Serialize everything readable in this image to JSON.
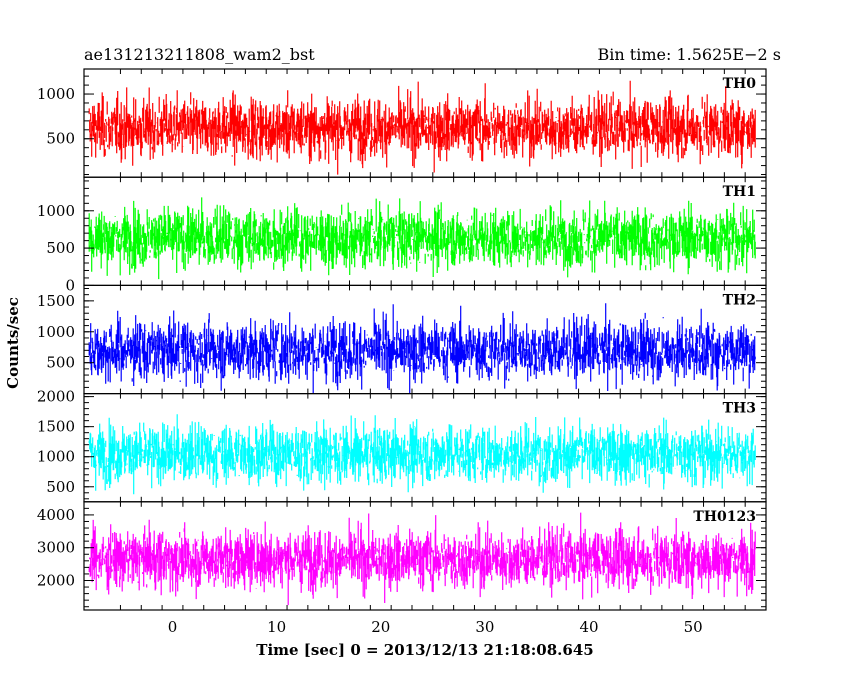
{
  "chart_data": {
    "type": "line",
    "title_left": "ae131213211808_wam2_bst",
    "title_right": "Bin time: 1.5625E−2 s",
    "xlabel": "Time [sec] 0 = 2013/12/13 21:18:08.645",
    "ylabel": "Counts/sec",
    "xlim": [
      -8.5,
      57
    ],
    "x_ticks": [
      "0",
      "10",
      "20",
      "30",
      "40",
      "50"
    ],
    "data_x_range": [
      -8.0,
      56.0
    ],
    "panels": [
      {
        "name": "TH0",
        "color": "#ff0000",
        "ylim": [
          70,
          1280
        ],
        "y_ticks": [
          500,
          1000
        ],
        "y_tick_labels": [
          "500",
          "1000"
        ],
        "min_visible": 70,
        "mean": 620,
        "max_visible": 1280
      },
      {
        "name": "TH1",
        "color": "#00ff00",
        "ylim": [
          0,
          1450
        ],
        "y_ticks": [
          0,
          500,
          1000
        ],
        "y_tick_labels": [
          "0",
          "500",
          "1000"
        ],
        "min_visible": 10,
        "mean": 640,
        "max_visible": 1450
      },
      {
        "name": "TH2",
        "color": "#0000ff",
        "ylim": [
          0,
          1750
        ],
        "y_ticks": [
          500,
          1000,
          1500
        ],
        "y_tick_labels": [
          "500",
          "1000",
          "1500"
        ],
        "min_visible": 10,
        "mean": 700,
        "max_visible": 1750
      },
      {
        "name": "TH3",
        "color": "#00ffff",
        "ylim": [
          250,
          2050
        ],
        "y_ticks": [
          500,
          1000,
          1500,
          2000
        ],
        "y_tick_labels": [
          "500",
          "1000",
          "1500",
          "2000"
        ],
        "min_visible": 250,
        "mean": 1050,
        "max_visible": 2000
      },
      {
        "name": "TH0123",
        "color": "#ff00ff",
        "ylim": [
          1100,
          4400
        ],
        "y_ticks": [
          2000,
          3000,
          4000
        ],
        "y_tick_labels": [
          "2000",
          "3000",
          "4000"
        ],
        "min_visible": 1150,
        "mean": 2650,
        "max_visible": 4400
      }
    ]
  }
}
